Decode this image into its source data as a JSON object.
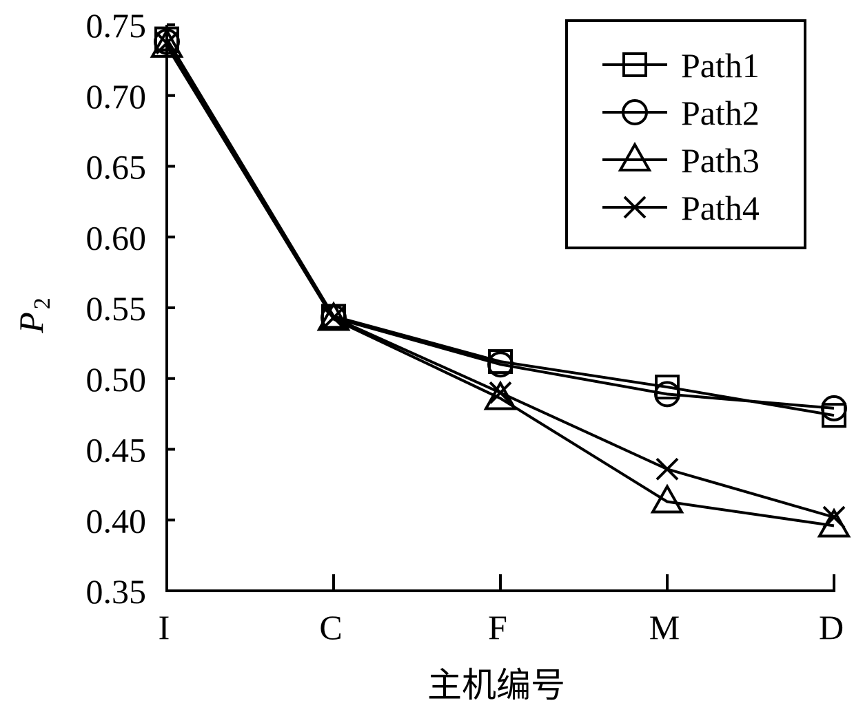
{
  "chart_data": {
    "type": "line",
    "categories": [
      "I",
      "C",
      "F",
      "M",
      "D"
    ],
    "xlabel": "主机编号",
    "ylabel": "P",
    "ylabel_subscript": "2",
    "ylim": [
      0.35,
      0.75
    ],
    "yticks": [
      "0.35",
      "0.40",
      "0.45",
      "0.50",
      "0.55",
      "0.60",
      "0.65",
      "0.70",
      "0.75"
    ],
    "grid": false,
    "legend_position": "top-right",
    "series": [
      {
        "name": "Path1",
        "marker": "square",
        "values": [
          0.74,
          0.544,
          0.512,
          0.494,
          0.474
        ]
      },
      {
        "name": "Path2",
        "marker": "circle",
        "values": [
          0.738,
          0.543,
          0.51,
          0.489,
          0.479
        ]
      },
      {
        "name": "Path3",
        "marker": "triangle",
        "values": [
          0.735,
          0.542,
          0.486,
          0.413,
          0.396
        ]
      },
      {
        "name": "Path4",
        "marker": "x",
        "values": [
          0.737,
          0.543,
          0.49,
          0.436,
          0.402
        ]
      }
    ]
  }
}
